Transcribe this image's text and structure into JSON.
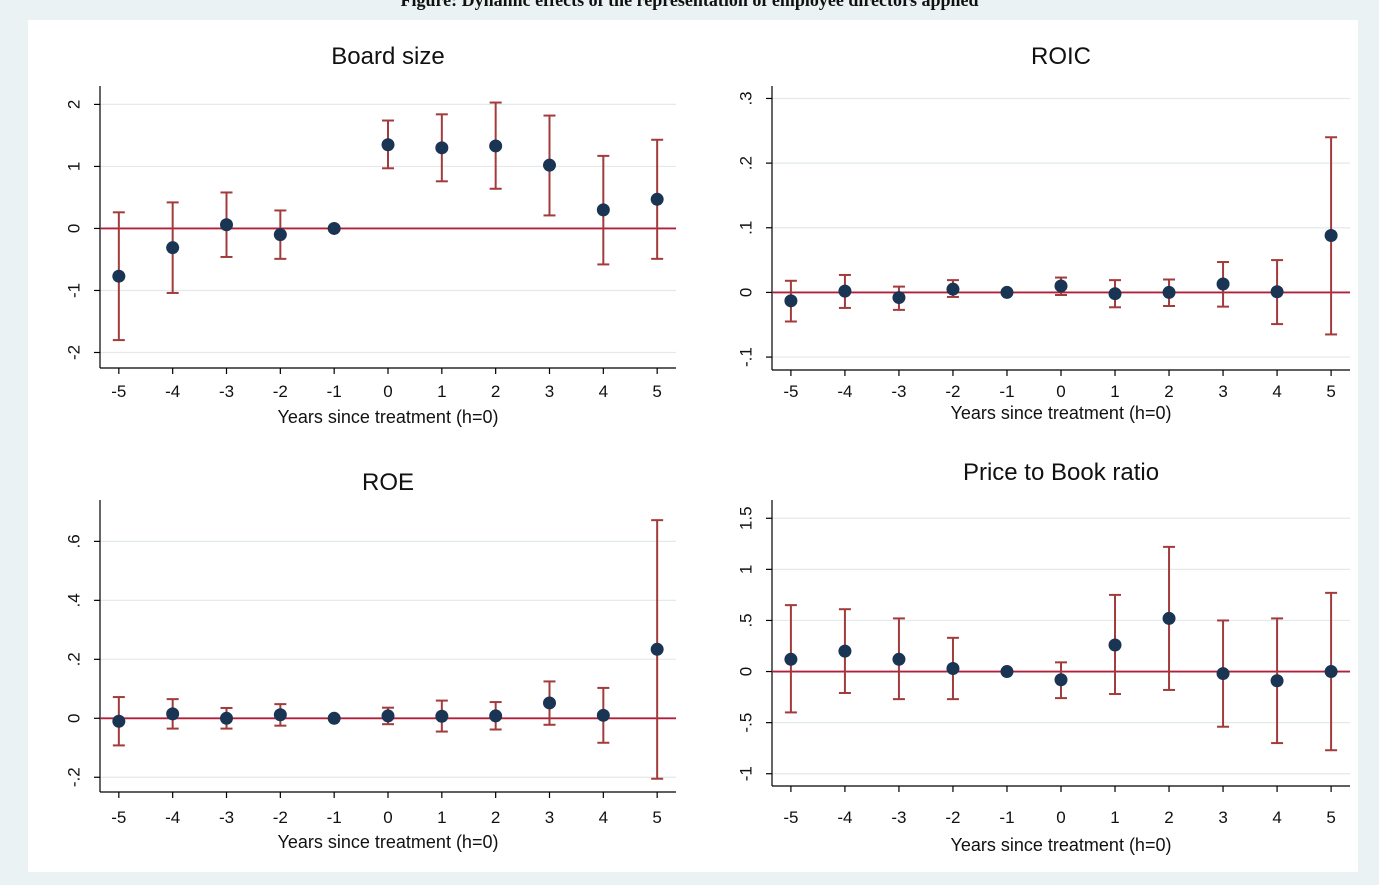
{
  "caption": "Figure: Dynamic effects of the representation of employee directors applied",
  "colors": {
    "ci": "#a23b3b",
    "zero_line": "#b0203a",
    "point": "#1a3453",
    "grid": "#e3eaee",
    "axis": "#000000"
  },
  "chart_data": [
    {
      "type": "scatter",
      "title": "Board size",
      "xlabel": "Years since treatment (h=0)",
      "ylabel": "",
      "x": [
        -5,
        -4,
        -3,
        -2,
        -1,
        0,
        1,
        2,
        3,
        4,
        5
      ],
      "values": [
        -0.77,
        -0.31,
        0.06,
        -0.1,
        0.0,
        1.35,
        1.3,
        1.33,
        1.02,
        0.3,
        0.47
      ],
      "ci_low": [
        -1.8,
        -1.04,
        -0.46,
        -0.49,
        0.0,
        0.97,
        0.76,
        0.64,
        0.21,
        -0.58,
        -0.49
      ],
      "ci_high": [
        0.26,
        0.42,
        0.58,
        0.29,
        0.0,
        1.74,
        1.84,
        2.03,
        1.82,
        1.17,
        1.43
      ],
      "yticks": [
        -2,
        -1,
        0,
        1,
        2
      ],
      "ytick_labels": [
        "-2",
        "-1",
        "0",
        "1",
        "2"
      ],
      "xtick_labels": [
        "-5",
        "-4",
        "-3",
        "-2",
        "-1",
        "0",
        "1",
        "2",
        "3",
        "4",
        "5"
      ],
      "ylim": [
        -2.25,
        2.2
      ],
      "xlim": [
        -5.35,
        5.35
      ],
      "grid": true
    },
    {
      "type": "scatter",
      "title": "ROIC",
      "xlabel": "Years since treatment (h=0)",
      "ylabel": "",
      "x": [
        -5,
        -4,
        -3,
        -2,
        -1,
        0,
        1,
        2,
        3,
        4,
        5
      ],
      "values": [
        -0.013,
        0.002,
        -0.008,
        0.005,
        0.0,
        0.01,
        -0.002,
        0.0,
        0.013,
        0.001,
        0.088
      ],
      "ci_low": [
        -0.045,
        -0.024,
        -0.027,
        -0.007,
        0.0,
        -0.004,
        -0.023,
        -0.021,
        -0.022,
        -0.049,
        -0.065
      ],
      "ci_high": [
        0.018,
        0.027,
        0.009,
        0.019,
        0.0,
        0.023,
        0.019,
        0.02,
        0.047,
        0.05,
        0.24
      ],
      "yticks": [
        -0.1,
        0,
        0.1,
        0.2,
        0.3
      ],
      "ytick_labels": [
        "-.1",
        "0",
        ".1",
        ".2",
        ".3"
      ],
      "xtick_labels": [
        "-5",
        "-4",
        "-3",
        "-2",
        "-1",
        "0",
        "1",
        "2",
        "3",
        "4",
        "5"
      ],
      "ylim": [
        -0.12,
        0.31
      ],
      "xlim": [
        -5.35,
        5.35
      ],
      "grid": true
    },
    {
      "type": "scatter",
      "title": "ROE",
      "xlabel": "Years since treatment (h=0)",
      "ylabel": "",
      "x": [
        -5,
        -4,
        -3,
        -2,
        -1,
        0,
        1,
        2,
        3,
        4,
        5
      ],
      "values": [
        -0.01,
        0.015,
        0.0,
        0.012,
        0.0,
        0.008,
        0.007,
        0.008,
        0.052,
        0.01,
        0.234
      ],
      "ci_low": [
        -0.092,
        -0.035,
        -0.035,
        -0.025,
        0.0,
        -0.02,
        -0.045,
        -0.038,
        -0.022,
        -0.083,
        -0.205
      ],
      "ci_high": [
        0.072,
        0.065,
        0.035,
        0.048,
        0.0,
        0.036,
        0.06,
        0.055,
        0.125,
        0.103,
        0.672
      ],
      "yticks": [
        -0.2,
        0,
        0.2,
        0.4,
        0.6
      ],
      "ytick_labels": [
        "-.2",
        "0",
        ".2",
        ".4",
        ".6"
      ],
      "xtick_labels": [
        "-5",
        "-4",
        "-3",
        "-2",
        "-1",
        "0",
        "1",
        "2",
        "3",
        "4",
        "5"
      ],
      "ylim": [
        -0.25,
        0.72
      ],
      "xlim": [
        -5.35,
        5.35
      ],
      "grid": true
    },
    {
      "type": "scatter",
      "title": "Price to Book ratio",
      "xlabel": "Years since treatment (h=0)",
      "ylabel": "",
      "x": [
        -5,
        -4,
        -3,
        -2,
        -1,
        0,
        1,
        2,
        3,
        4,
        5
      ],
      "values": [
        0.12,
        0.2,
        0.12,
        0.03,
        0.0,
        -0.08,
        0.26,
        0.52,
        -0.02,
        -0.09,
        0.0
      ],
      "ci_low": [
        -0.4,
        -0.21,
        -0.27,
        -0.27,
        0.0,
        -0.26,
        -0.22,
        -0.18,
        -0.54,
        -0.7,
        -0.77
      ],
      "ci_high": [
        0.65,
        0.61,
        0.52,
        0.33,
        0.0,
        0.09,
        0.75,
        1.22,
        0.5,
        0.52,
        0.77
      ],
      "yticks": [
        -1,
        -0.5,
        0,
        0.5,
        1,
        1.5
      ],
      "ytick_labels": [
        "-1",
        "-.5",
        "0",
        ".5",
        "1",
        "1.5"
      ],
      "xtick_labels": [
        "-5",
        "-4",
        "-3",
        "-2",
        "-1",
        "0",
        "1",
        "2",
        "3",
        "4",
        "5"
      ],
      "ylim": [
        -1.12,
        1.62
      ],
      "xlim": [
        -5.35,
        5.35
      ],
      "grid": true
    }
  ]
}
